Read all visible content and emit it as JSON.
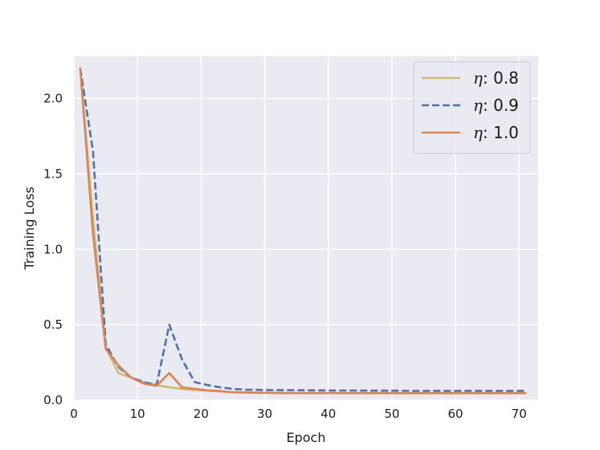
{
  "chart_data": {
    "type": "line",
    "title": "",
    "xlabel": "Epoch",
    "ylabel": "Training Loss",
    "xlim": [
      0,
      73
    ],
    "ylim": [
      0,
      2.28
    ],
    "xticks": [
      0,
      10,
      20,
      30,
      40,
      50,
      60,
      70
    ],
    "yticks": [
      0.0,
      0.5,
      1.0,
      1.5,
      2.0
    ],
    "xtick_labels": [
      "0",
      "10",
      "20",
      "30",
      "40",
      "50",
      "60",
      "70"
    ],
    "ytick_labels": [
      "0.0",
      "0.5",
      "1.0",
      "1.5",
      "2.0"
    ],
    "grid": true,
    "legend_position": "top-right",
    "background": "#eaeaf2",
    "series": [
      {
        "name": "0.8",
        "legend_prefix": "η",
        "color": "#ccb974",
        "dash": "solid",
        "x": [
          1,
          3,
          5,
          7,
          9,
          11,
          13,
          15,
          17,
          19,
          21,
          23,
          25,
          27,
          29,
          31,
          33,
          35,
          37,
          39,
          41,
          43,
          45,
          47,
          49,
          51,
          53,
          55,
          57,
          59,
          61,
          63,
          65,
          67,
          69,
          71
        ],
        "y": [
          2.2,
          1.2,
          0.35,
          0.18,
          0.15,
          0.12,
          0.1,
          0.085,
          0.075,
          0.068,
          0.063,
          0.058,
          0.054,
          0.052,
          0.05,
          0.049,
          0.048,
          0.047,
          0.047,
          0.047,
          0.047,
          0.047,
          0.047,
          0.046,
          0.046,
          0.046,
          0.046,
          0.046,
          0.046,
          0.046,
          0.046,
          0.046,
          0.046,
          0.046,
          0.046,
          0.046
        ]
      },
      {
        "name": "0.9",
        "legend_prefix": "η",
        "color": "#4c72b0",
        "dash": "dashed",
        "x": [
          1,
          3,
          5,
          7,
          9,
          11,
          13,
          15,
          17,
          19,
          21,
          23,
          25,
          27,
          29,
          31,
          33,
          35,
          37,
          39,
          41,
          43,
          45,
          47,
          49,
          51,
          53,
          55,
          57,
          59,
          61,
          63,
          65,
          67,
          69,
          71
        ],
        "y": [
          2.2,
          1.65,
          0.37,
          0.22,
          0.15,
          0.12,
          0.1,
          0.5,
          0.27,
          0.12,
          0.1,
          0.085,
          0.075,
          0.07,
          0.068,
          0.067,
          0.066,
          0.066,
          0.065,
          0.065,
          0.064,
          0.064,
          0.064,
          0.063,
          0.063,
          0.063,
          0.062,
          0.062,
          0.062,
          0.062,
          0.062,
          0.062,
          0.062,
          0.062,
          0.062,
          0.062
        ]
      },
      {
        "name": "1.0",
        "legend_prefix": "η",
        "color": "#dd8452",
        "dash": "solid",
        "x": [
          1,
          3,
          5,
          7,
          9,
          11,
          13,
          15,
          17,
          19,
          21,
          23,
          25,
          27,
          29,
          31,
          33,
          35,
          37,
          39,
          41,
          43,
          45,
          47,
          49,
          51,
          53,
          55,
          57,
          59,
          61,
          63,
          65,
          67,
          69,
          71
        ],
        "y": [
          2.2,
          1.1,
          0.34,
          0.23,
          0.15,
          0.11,
          0.095,
          0.18,
          0.085,
          0.075,
          0.065,
          0.06,
          0.052,
          0.05,
          0.049,
          0.048,
          0.047,
          0.047,
          0.047,
          0.047,
          0.047,
          0.047,
          0.047,
          0.047,
          0.047,
          0.047,
          0.047,
          0.047,
          0.047,
          0.047,
          0.047,
          0.047,
          0.047,
          0.047,
          0.047,
          0.047
        ]
      }
    ]
  }
}
